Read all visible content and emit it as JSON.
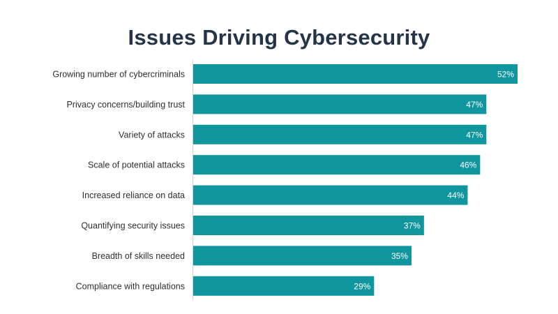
{
  "chart_data": {
    "type": "bar",
    "orientation": "horizontal",
    "title": "Issues Driving Cybersecurity",
    "categories": [
      "Growing number of cybercriminals",
      "Privacy concerns/building trust",
      "Variety of attacks",
      "Scale of potential attacks",
      "Increased reliance on data",
      "Quantifying security issues",
      "Breadth of skills needed",
      "Compliance with regulations"
    ],
    "values": [
      52,
      47,
      47,
      46,
      44,
      37,
      35,
      29
    ],
    "value_labels": [
      "52%",
      "47%",
      "47%",
      "46%",
      "44%",
      "37%",
      "35%",
      "29%"
    ],
    "xlim": [
      0,
      52
    ],
    "grid": false,
    "bar_color": "#10969E",
    "title_color": "#253446"
  }
}
